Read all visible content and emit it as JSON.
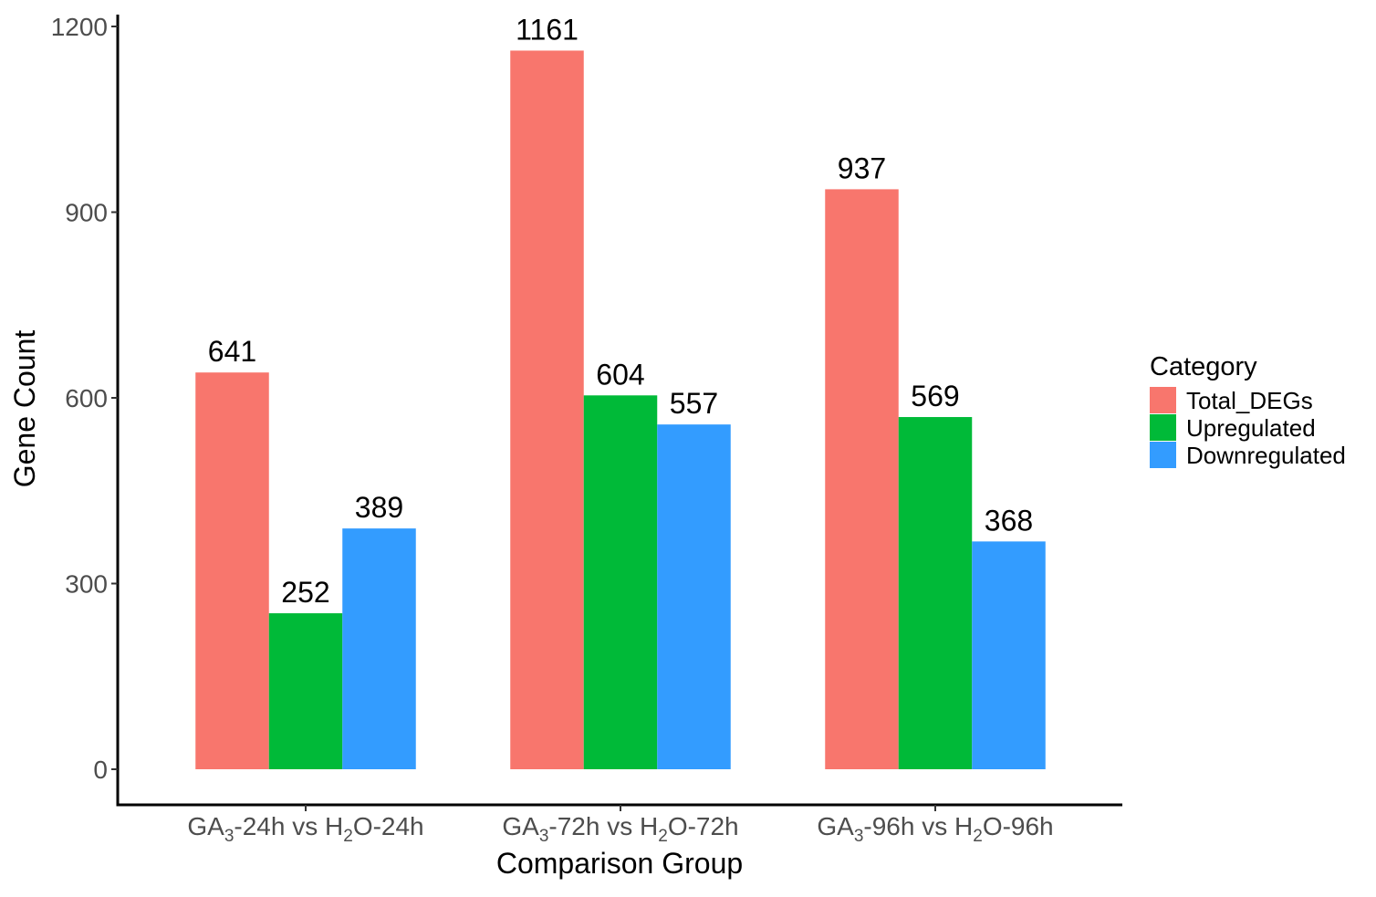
{
  "chart_data": {
    "type": "bar",
    "title": "",
    "xlabel": "Comparison Group",
    "ylabel": "Gene Count",
    "ylim": [
      0,
      1200
    ],
    "yticks": [
      0,
      300,
      600,
      900,
      1200
    ],
    "grid": false,
    "categories": [
      {
        "label": "GA3-24h vs H2O-24h",
        "parts": [
          [
            "GA",
            false
          ],
          [
            "3",
            true
          ],
          [
            "-24h vs H",
            false
          ],
          [
            "2",
            true
          ],
          [
            "O-24h",
            false
          ]
        ]
      },
      {
        "label": "GA3-72h vs H2O-72h",
        "parts": [
          [
            "GA",
            false
          ],
          [
            "3",
            true
          ],
          [
            "-72h vs H",
            false
          ],
          [
            "2",
            true
          ],
          [
            "O-72h",
            false
          ]
        ]
      },
      {
        "label": "GA3-96h vs H2O-96h",
        "parts": [
          [
            "GA",
            false
          ],
          [
            "3",
            true
          ],
          [
            "-96h vs H",
            false
          ],
          [
            "2",
            true
          ],
          [
            "O-96h",
            false
          ]
        ]
      }
    ],
    "series": [
      {
        "name": "Total_DEGs",
        "color": "#F8766D",
        "values": [
          641,
          1161,
          937
        ]
      },
      {
        "name": "Upregulated",
        "color": "#00BA38",
        "values": [
          252,
          604,
          569
        ]
      },
      {
        "name": "Downregulated",
        "color": "#339CFF",
        "values": [
          389,
          557,
          368
        ]
      }
    ],
    "legend": {
      "title": "Category",
      "position": "right"
    }
  }
}
